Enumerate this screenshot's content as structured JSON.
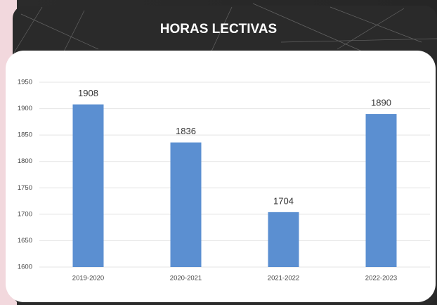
{
  "chart_data": {
    "type": "bar",
    "title": "HORAS LECTIVAS",
    "categories": [
      "2019-2020",
      "2020-2021",
      "2021-2022",
      "2022-2023"
    ],
    "values": [
      1908,
      1836,
      1704,
      1890
    ],
    "color": "#5b8fd1",
    "ylim": [
      1600,
      1950
    ],
    "yticks": [
      1600,
      1650,
      1700,
      1750,
      1800,
      1850,
      1900,
      1950
    ],
    "grid": true
  }
}
